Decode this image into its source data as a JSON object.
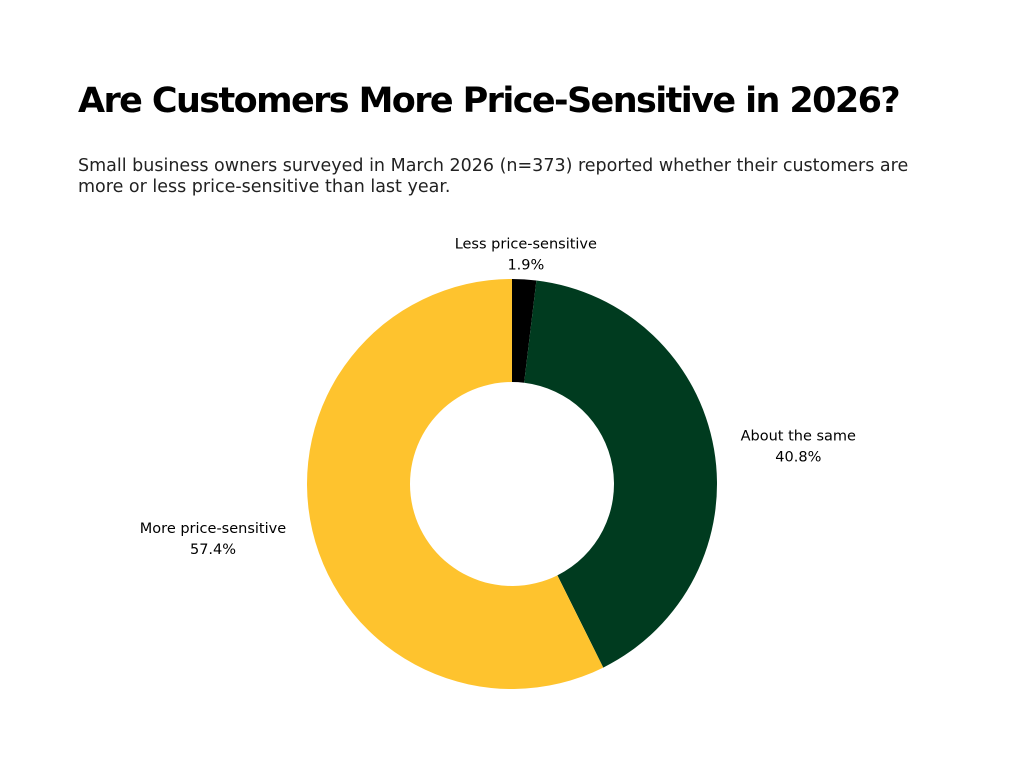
{
  "title": "Are Customers More Price-Sensitive in 2026?",
  "subtitle": "Small business owners surveyed in March 2026 (n=373) reported whether their customers are more or less price-sensitive than last year.",
  "chart_data": {
    "type": "pie",
    "style": "donut",
    "title": "Are Customers More Price-Sensitive in 2026?",
    "subtitle": "Small business owners surveyed in March 2026 (n=373) reported whether their customers are more or less price-sensitive than last year.",
    "unit": "%",
    "slices": [
      {
        "label": "Less price-sensitive",
        "value": 1.9,
        "display": "1.9%",
        "color": "#000000"
      },
      {
        "label": "About the same",
        "value": 40.8,
        "display": "40.8%",
        "color": "#003b1f"
      },
      {
        "label": "More price-sensitive",
        "value": 57.4,
        "display": "57.4%",
        "color": "#fec32e"
      }
    ],
    "legend": "none"
  }
}
